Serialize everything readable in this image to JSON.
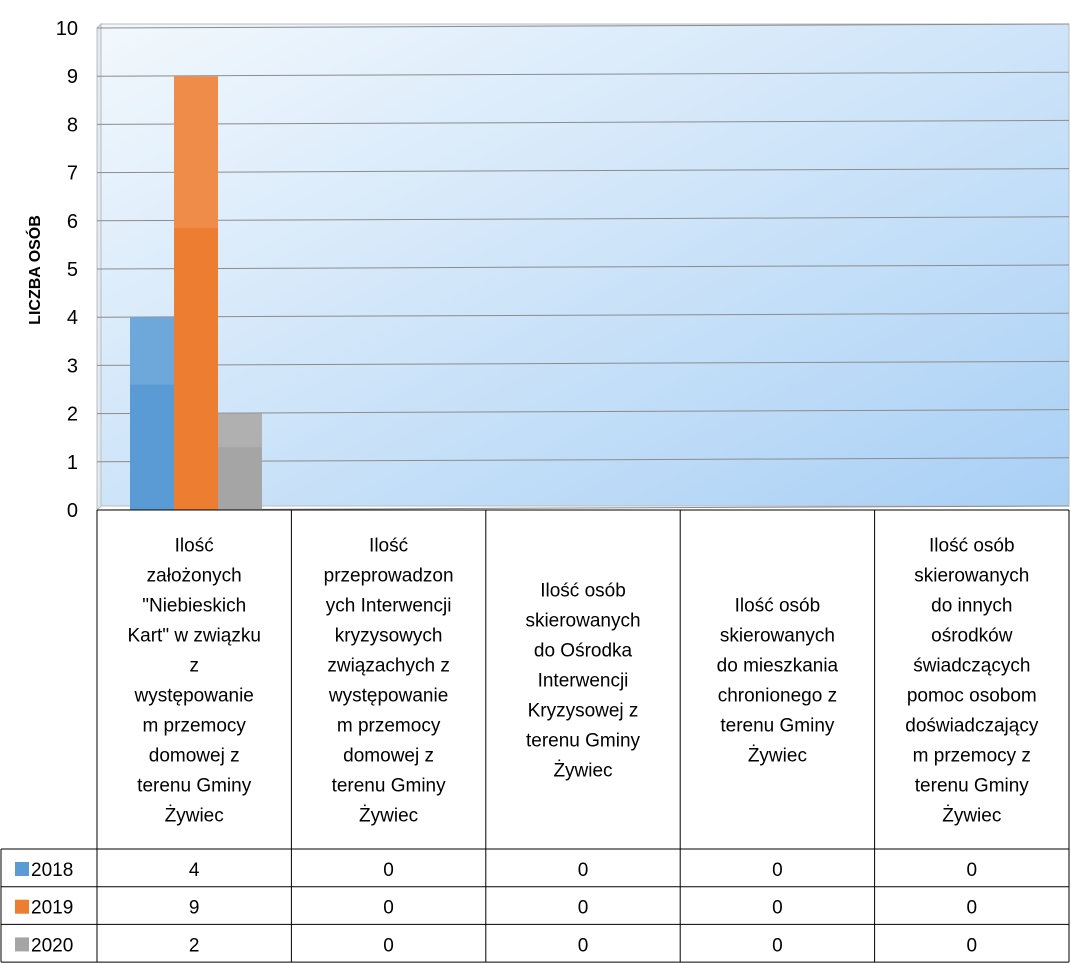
{
  "chart_data": {
    "type": "bar",
    "title": "",
    "xlabel": "",
    "ylabel": "LICZBA OSÓB",
    "ylim": [
      0,
      10
    ],
    "yticks": [
      0,
      1,
      2,
      3,
      4,
      5,
      6,
      7,
      8,
      9,
      10
    ],
    "grid": true,
    "legend": "data-table-left",
    "categories": [
      [
        "Ilość",
        "założonych",
        "\"Niebieskich",
        "Kart\" w związku",
        "z",
        "występowanie",
        "m przemocy",
        "domowej z",
        "terenu Gminy",
        "Żywiec"
      ],
      [
        "Ilość",
        "przeprowadzon",
        "ych Interwencji",
        "kryzysowych",
        "związachych  z",
        "występowanie",
        "m przemocy",
        "domowej z",
        "terenu Gminy",
        "Żywiec"
      ],
      [
        "Ilość osób",
        "skierowanych",
        "do Ośrodka",
        "Interwencji",
        "Kryzysowej z",
        "terenu Gminy",
        "Żywiec"
      ],
      [
        "Ilość osób",
        "skierowanych",
        "do mieszkania",
        "chronionego z",
        "terenu Gminy",
        "Żywiec"
      ],
      [
        "Ilość osób",
        "skierowanych",
        "do innych",
        "ośrodków",
        "świadczących",
        "pomoc osobom",
        "doświadczający",
        "m przemocy  z",
        "terenu Gminy",
        "Żywiec"
      ]
    ],
    "series": [
      {
        "name": "2018",
        "color": "#5B9BD5",
        "values": [
          4,
          0,
          0,
          0,
          0
        ]
      },
      {
        "name": "2019",
        "color": "#ED7D31",
        "values": [
          9,
          0,
          0,
          0,
          0
        ]
      },
      {
        "name": "2020",
        "color": "#A5A5A5",
        "values": [
          2,
          0,
          0,
          0,
          0
        ]
      }
    ]
  }
}
